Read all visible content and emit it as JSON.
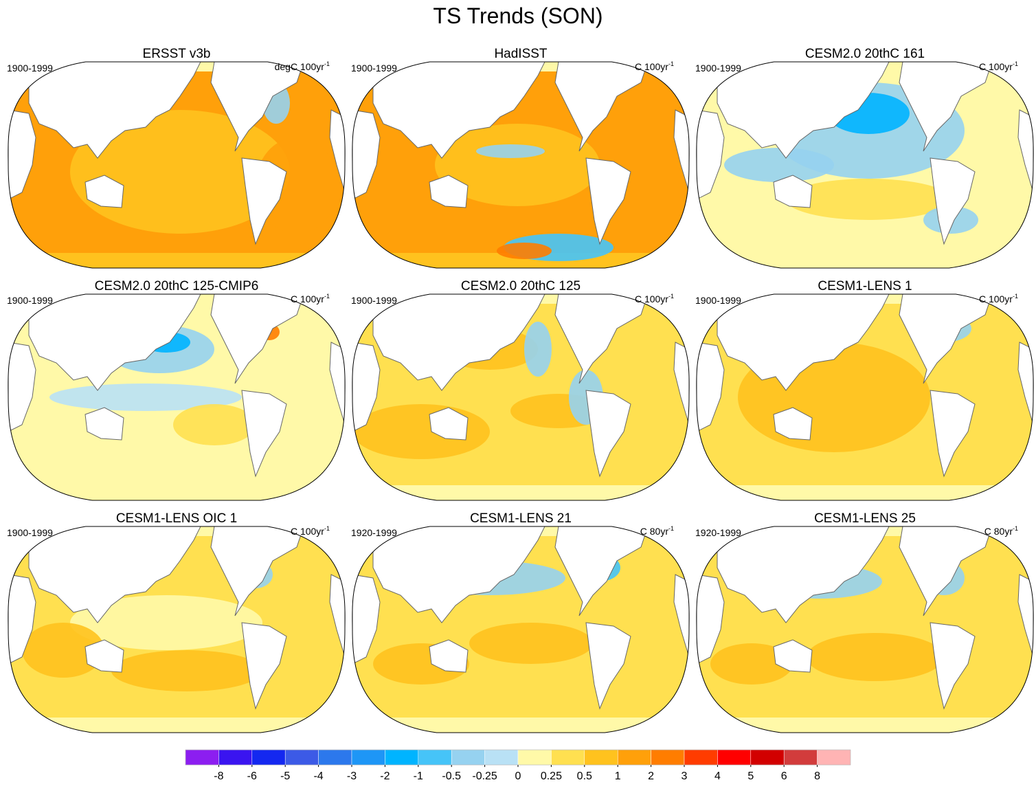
{
  "title": "TS Trends (SON)",
  "panels": [
    {
      "title": "ERSST v3b",
      "period": "1900-1999",
      "units": {
        "base": "degC 100yr",
        "exponent": "-1"
      }
    },
    {
      "title": "HadISST",
      "period": "1900-1999",
      "units": {
        "base": "C 100yr",
        "exponent": "-1"
      }
    },
    {
      "title": "CESM2.0 20thC 161",
      "period": "1900-1999",
      "units": {
        "base": "C 100yr",
        "exponent": "-1"
      }
    },
    {
      "title": "CESM2.0 20thC 125-CMIP6",
      "period": "1900-1999",
      "units": {
        "base": "C 100yr",
        "exponent": "-1"
      }
    },
    {
      "title": "CESM2.0 20thC 125",
      "period": "1900-1999",
      "units": {
        "base": "C 100yr",
        "exponent": "-1"
      }
    },
    {
      "title": "CESM1-LENS 1",
      "period": "1900-1999",
      "units": {
        "base": "C 100yr",
        "exponent": "-1"
      }
    },
    {
      "title": "CESM1-LENS OIC 1",
      "period": "1900-1999",
      "units": {
        "base": "C 100yr",
        "exponent": "-1"
      }
    },
    {
      "title": "CESM1-LENS 21",
      "period": "1920-1999",
      "units": {
        "base": "C 80yr",
        "exponent": "-1"
      }
    },
    {
      "title": "CESM1-LENS 25",
      "period": "1920-1999",
      "units": {
        "base": "C 80yr",
        "exponent": "-1"
      }
    }
  ],
  "colorbar": {
    "levels": [
      -8,
      -6,
      -5,
      -4,
      -3,
      -2,
      -1,
      -0.5,
      -0.25,
      0,
      0.25,
      0.5,
      1,
      2,
      3,
      4,
      5,
      6,
      8
    ],
    "colors": [
      "#8c1ef0",
      "#3a14f0",
      "#1428f0",
      "#3c5ae6",
      "#2c78ec",
      "#1e96f6",
      "#00b4ff",
      "#46c4f8",
      "#96d2f0",
      "#b9e1f5",
      "#fff9a8",
      "#ffe050",
      "#ffc21e",
      "#ffa00a",
      "#ff7d00",
      "#ff3c00",
      "#ff0000",
      "#d20000",
      "#d23c3c",
      "#ffb4b4"
    ]
  }
}
